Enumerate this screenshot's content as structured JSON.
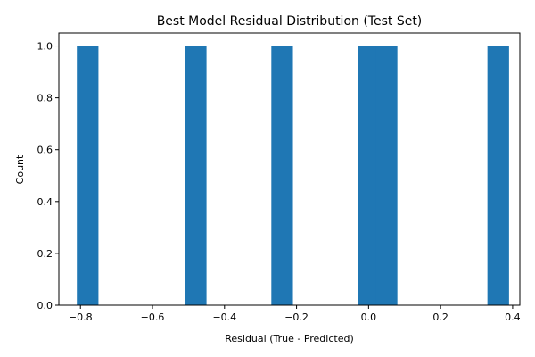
{
  "chart_data": {
    "type": "bar",
    "title": "Best Model Residual Distribution (Test Set)",
    "xlabel": "Residual (True - Predicted)",
    "ylabel": "Count",
    "xlim": [
      -0.86,
      0.42
    ],
    "ylim": [
      0,
      1.05
    ],
    "x_ticks": [
      -0.8,
      -0.6,
      -0.4,
      -0.2,
      0.0,
      0.2,
      0.4
    ],
    "x_tick_labels": [
      "−0.8",
      "−0.6",
      "−0.4",
      "−0.2",
      "0.0",
      "0.2",
      "0.4"
    ],
    "y_ticks": [
      0.0,
      0.2,
      0.4,
      0.6,
      0.8,
      1.0
    ],
    "y_tick_labels": [
      "0.0",
      "0.2",
      "0.4",
      "0.6",
      "0.8",
      "1.0"
    ],
    "grid": false,
    "bars": [
      {
        "x_start": -0.81,
        "x_end": -0.75,
        "value": 1
      },
      {
        "x_start": -0.51,
        "x_end": -0.45,
        "value": 1
      },
      {
        "x_start": -0.27,
        "x_end": -0.21,
        "value": 1
      },
      {
        "x_start": -0.03,
        "x_end": 0.03,
        "value": 1
      },
      {
        "x_start": 0.02,
        "x_end": 0.08,
        "value": 1
      },
      {
        "x_start": 0.33,
        "x_end": 0.39,
        "value": 1
      }
    ],
    "bar_color": "#1f77b4"
  }
}
